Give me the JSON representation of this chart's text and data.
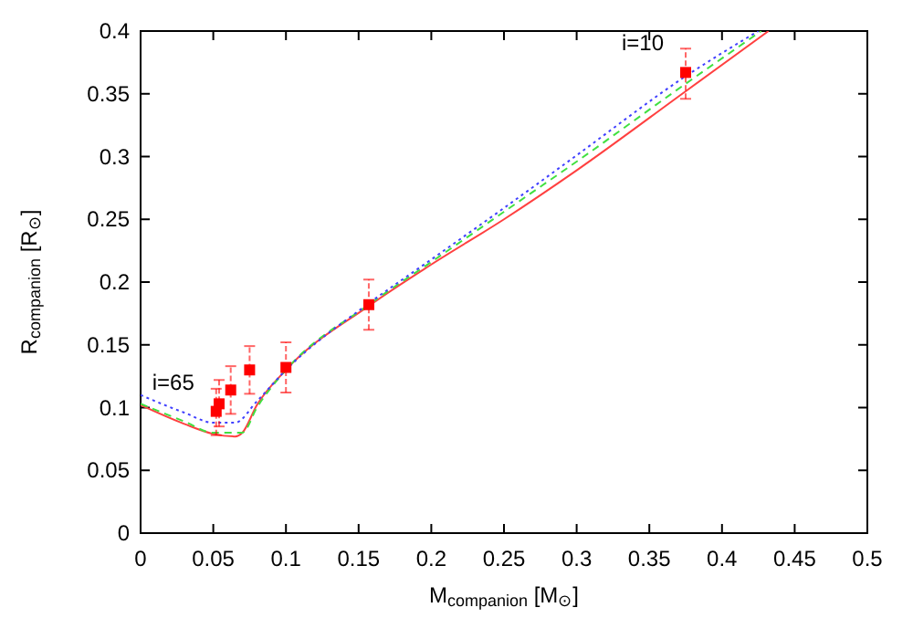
{
  "chart_data": {
    "type": "line",
    "xlabel": "M$_{companion}$ [M$_{⊙}$]",
    "ylabel": "R$_{companion}$ [R$_{⊙}$]",
    "xlim": [
      0,
      0.5
    ],
    "ylim": [
      0,
      0.4
    ],
    "xticks": [
      0,
      0.05,
      0.1,
      0.15,
      0.2,
      0.25,
      0.3,
      0.35,
      0.4,
      0.45,
      0.5
    ],
    "yticks": [
      0,
      0.05,
      0.1,
      0.15,
      0.2,
      0.25,
      0.3,
      0.35,
      0.4
    ],
    "grid": false,
    "annotations": [
      {
        "text": "i=65",
        "x": 0.052,
        "y": 0.097
      },
      {
        "text": "i=10",
        "x": 0.375,
        "y": 0.367
      }
    ],
    "series": [
      {
        "color": "#ff4040",
        "line_style": "solid",
        "x": [
          0,
          0.03,
          0.05,
          0.065,
          0.07,
          0.08,
          0.1,
          0.157,
          0.2,
          0.25,
          0.3,
          0.375,
          0.432
        ],
        "values": [
          0.102,
          0.087,
          0.079,
          0.077,
          0.08,
          0.102,
          0.13,
          0.181,
          0.214,
          0.25,
          0.289,
          0.352,
          0.4
        ]
      },
      {
        "color": "#40e040",
        "line_style": "dashed",
        "x": [
          0,
          0.03,
          0.05,
          0.07,
          0.08,
          0.1,
          0.157,
          0.2,
          0.25,
          0.3,
          0.375,
          0.427
        ],
        "values": [
          0.103,
          0.089,
          0.08,
          0.08,
          0.1,
          0.13,
          0.182,
          0.216,
          0.256,
          0.296,
          0.358,
          0.4
        ]
      },
      {
        "color": "#4040ff",
        "line_style": "dotted",
        "x": [
          0,
          0.03,
          0.05,
          0.065,
          0.08,
          0.1,
          0.157,
          0.2,
          0.25,
          0.3,
          0.375,
          0.425
        ],
        "values": [
          0.11,
          0.096,
          0.088,
          0.088,
          0.105,
          0.13,
          0.183,
          0.218,
          0.259,
          0.301,
          0.364,
          0.4
        ]
      },
      {
        "type": "scatter",
        "color": "#ff0000",
        "marker": "square",
        "x": [
          0.052,
          0.054,
          0.062,
          0.075,
          0.1,
          0.157,
          0.375
        ],
        "values": [
          0.097,
          0.103,
          0.114,
          0.13,
          0.132,
          0.182,
          0.367
        ],
        "errors": [
          [
            0.078,
            0.115
          ],
          [
            0.085,
            0.122
          ],
          [
            0.095,
            0.133
          ],
          [
            0.111,
            0.149
          ],
          [
            0.112,
            0.152
          ],
          [
            0.162,
            0.202
          ],
          [
            0.346,
            0.386
          ]
        ]
      }
    ]
  }
}
